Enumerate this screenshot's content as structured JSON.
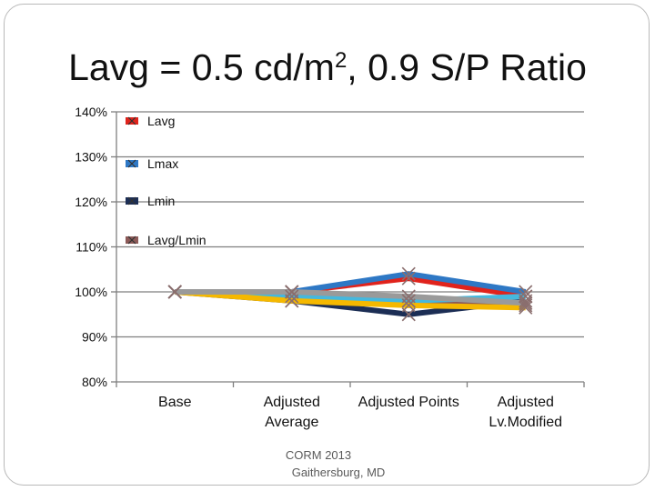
{
  "slide": {
    "title_main": "Lavg = 0.5 cd/m",
    "title_sup": "2",
    "title_rest": ", 0.9 S/P Ratio",
    "footer_line1": "CORM 2013",
    "footer_line2": "Gaithersburg, MD"
  },
  "chart_data": {
    "type": "line",
    "title": "Lavg = 0.5 cd/m2, 0.9 S/P Ratio",
    "xlabel": "",
    "ylabel": "",
    "ylim": [
      0.8,
      1.4
    ],
    "yticks": [
      0.8,
      0.9,
      1.0,
      1.1,
      1.2,
      1.3,
      1.4
    ],
    "ytick_labels": [
      "80%",
      "90%",
      "100%",
      "110%",
      "120%",
      "130%",
      "140%"
    ],
    "grid": true,
    "legend_position": "top-left inside plot",
    "categories": [
      "Base",
      "Adjusted Average",
      "Adjusted Points",
      "Adjusted Lv.Modified"
    ],
    "category_lines": [
      [
        "Base"
      ],
      [
        "Adjusted",
        "Average"
      ],
      [
        "Adjusted Points"
      ],
      [
        "Adjusted",
        "Lv.Modified"
      ]
    ],
    "series": [
      {
        "name": "Lavg",
        "color": "#e0231c",
        "marker": "x",
        "values": [
          1.0,
          1.0,
          1.03,
          0.99
        ]
      },
      {
        "name": "Lmax",
        "color": "#2e78c5",
        "marker": "x",
        "values": [
          1.0,
          1.0,
          1.04,
          1.0
        ]
      },
      {
        "name": "Lmin",
        "color": "#1c2e55",
        "marker": "x",
        "values": [
          1.0,
          0.98,
          0.95,
          0.98
        ]
      },
      {
        "name": "Lavg/Lmin",
        "color": "#8c5a58",
        "marker": "x",
        "values": [
          1.0,
          1.0,
          0.98,
          0.97
        ]
      }
    ],
    "extra_lines": [
      {
        "color": "#45b8de",
        "values": [
          1.0,
          0.99,
          0.98,
          0.99
        ]
      },
      {
        "color": "#f5b800",
        "values": [
          1.0,
          0.98,
          0.97,
          0.965
        ]
      },
      {
        "color": "#9a9a9a",
        "values": [
          1.0,
          1.0,
          0.99,
          0.975
        ]
      }
    ]
  }
}
